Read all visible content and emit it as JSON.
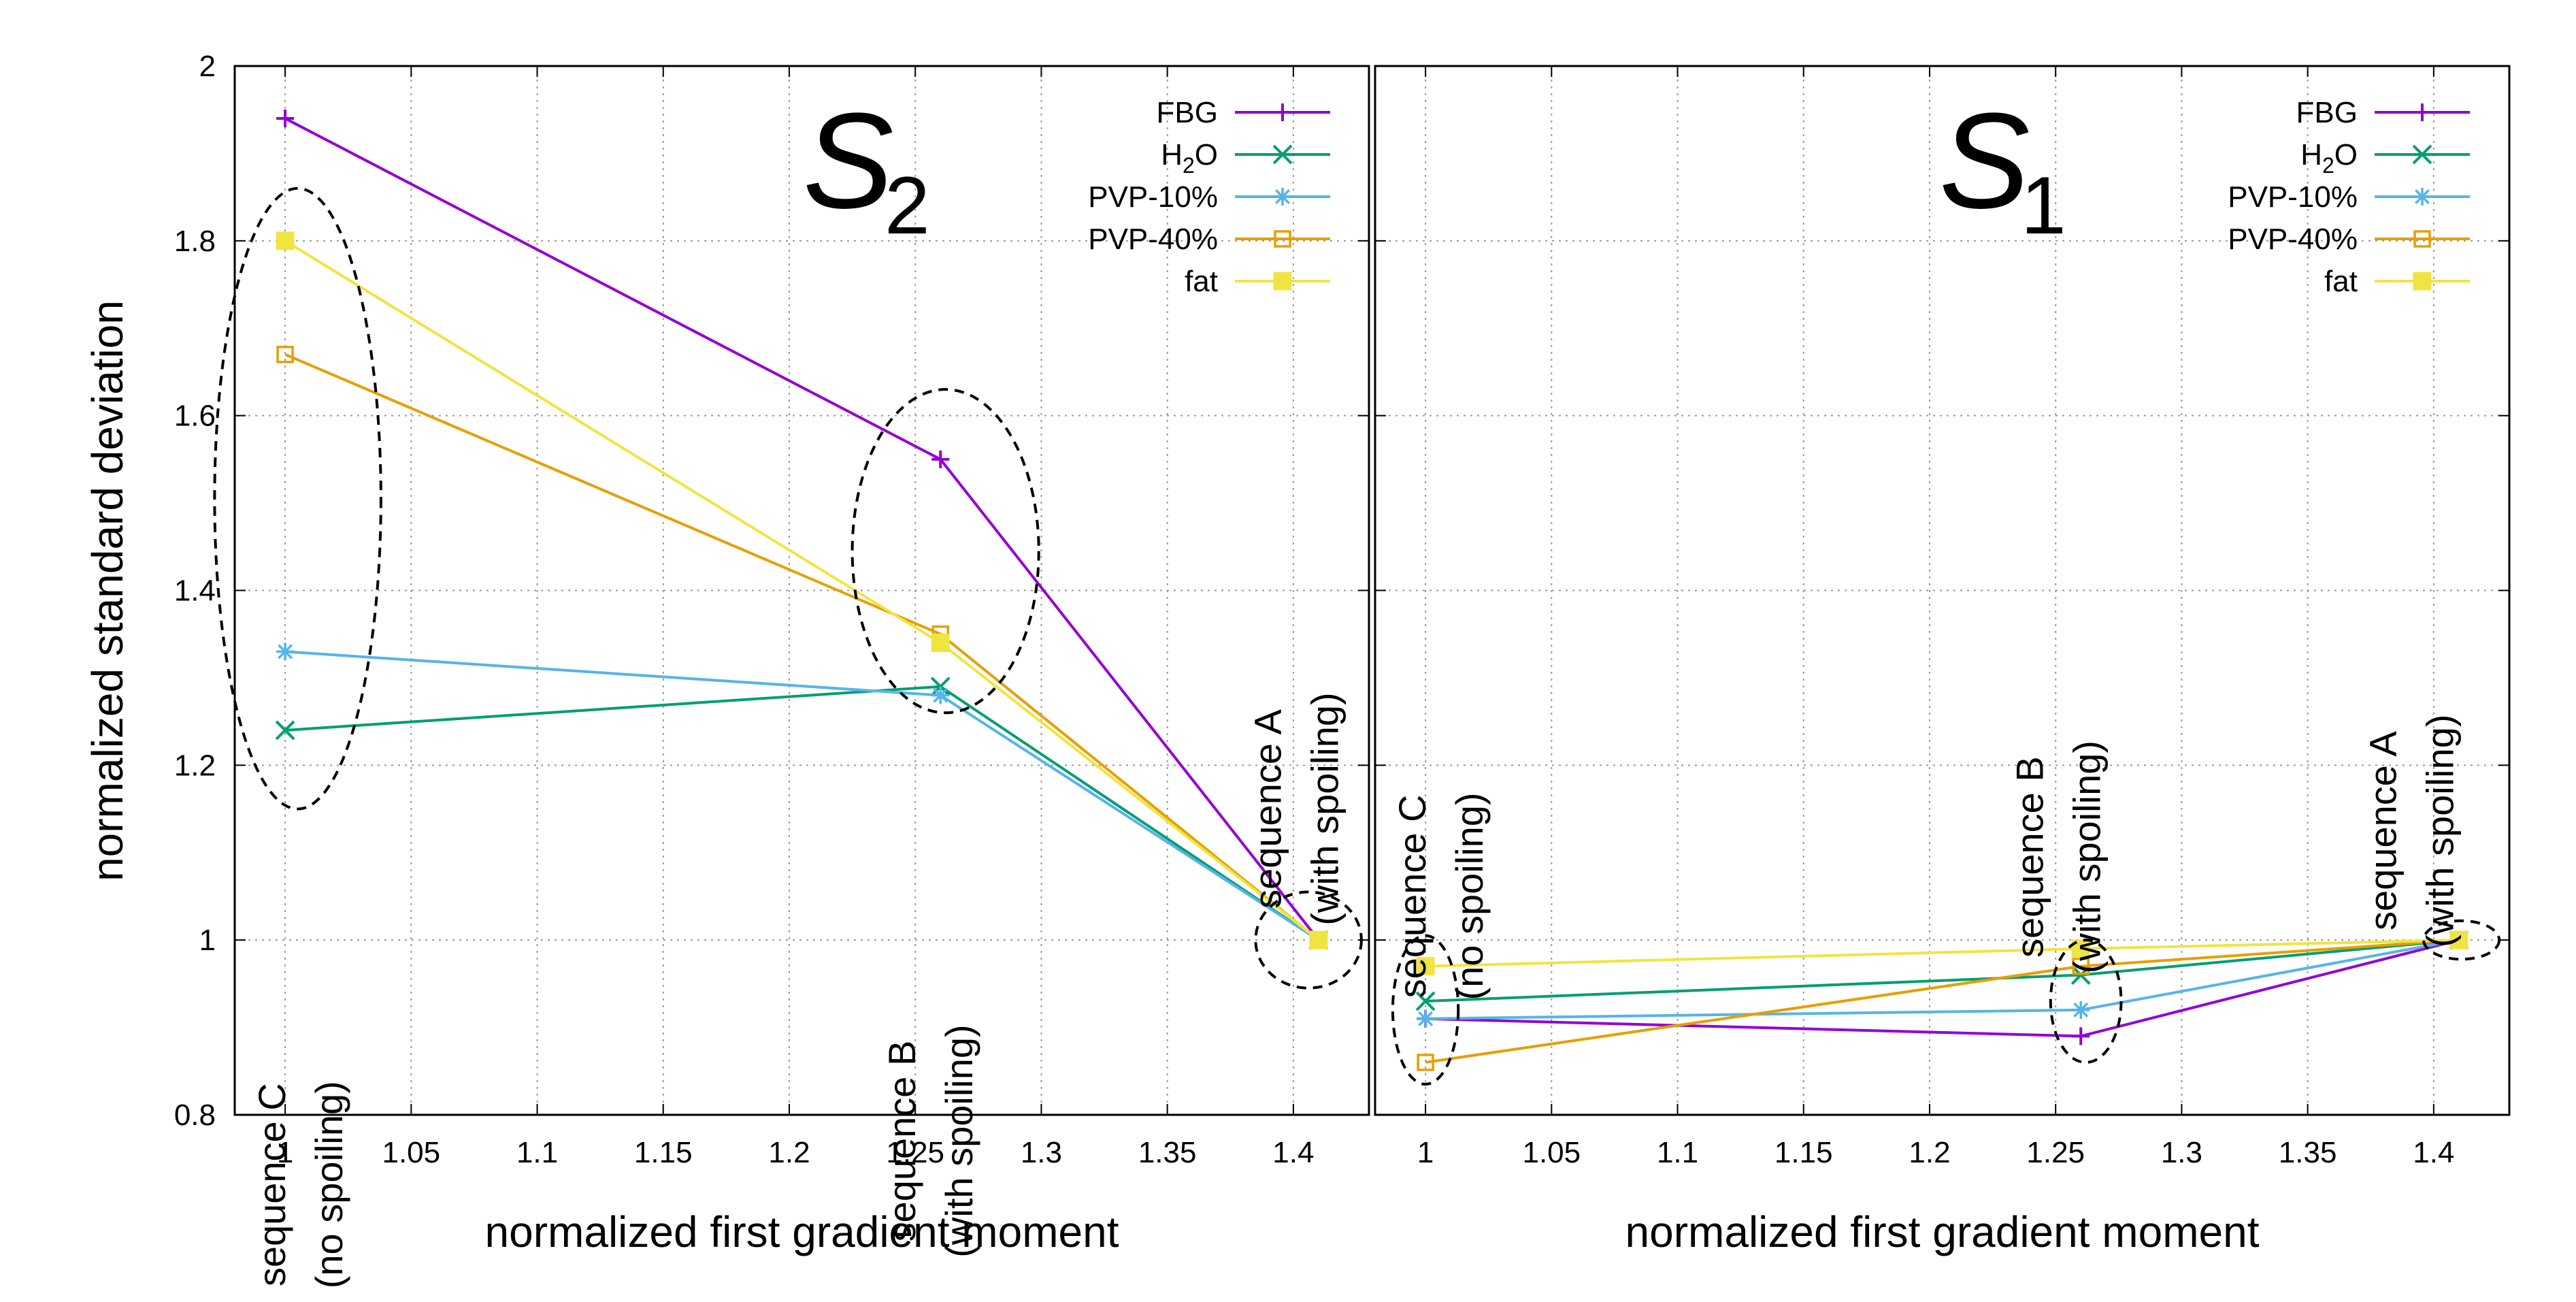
{
  "chart_data": [
    {
      "type": "line",
      "panel_label": "S",
      "panel_sub": "2",
      "xlabel": "normalized first gradient moment",
      "ylabel": "normalized standard deviation",
      "xlim": [
        0.98,
        1.43
      ],
      "ylim": [
        0.8,
        2.0
      ],
      "xticks": [
        "1",
        "1.05",
        "1.1",
        "1.15",
        "1.2",
        "1.25",
        "1.3",
        "1.35",
        "1.4"
      ],
      "yticks": [
        "0.8",
        "1",
        "1.2",
        "1.4",
        "1.6",
        "1.8",
        "2"
      ],
      "grid": true,
      "legend_position": "top-right",
      "series": [
        {
          "name": "FBG",
          "label_main": "FBG",
          "label_sub": "",
          "label_tail": "",
          "color": "#9400D3",
          "marker": "plus",
          "x": [
            1,
            1.26,
            1.41
          ],
          "y": [
            1.94,
            1.55,
            1.0
          ]
        },
        {
          "name": "H2O",
          "label_main": "H",
          "label_sub": "2",
          "label_tail": "O",
          "color": "#009E73",
          "marker": "cross",
          "x": [
            1,
            1.26,
            1.41
          ],
          "y": [
            1.24,
            1.29,
            1.0
          ]
        },
        {
          "name": "PVP-10%",
          "label_main": "PVP-10%",
          "label_sub": "",
          "label_tail": "",
          "color": "#56B4E9",
          "marker": "star",
          "x": [
            1,
            1.26,
            1.41
          ],
          "y": [
            1.33,
            1.28,
            1.0
          ]
        },
        {
          "name": "PVP-40%",
          "label_main": "PVP-40%",
          "label_sub": "",
          "label_tail": "",
          "color": "#E69F00",
          "marker": "square-open",
          "x": [
            1,
            1.26,
            1.41
          ],
          "y": [
            1.67,
            1.35,
            1.0
          ]
        },
        {
          "name": "fat",
          "label_main": "fat",
          "label_sub": "",
          "label_tail": "",
          "color": "#F0E442",
          "marker": "square-filled",
          "x": [
            1,
            1.26,
            1.41
          ],
          "y": [
            1.8,
            1.34,
            1.0
          ]
        }
      ],
      "annotations": [
        {
          "line1": "sequence C",
          "line2": "(no spoiling)"
        },
        {
          "line1": "sequence B",
          "line2": "(with spoiling)"
        },
        {
          "line1": "sequence A",
          "line2": "(with spoiling)"
        }
      ]
    },
    {
      "type": "line",
      "panel_label": "S",
      "panel_sub": "1",
      "xlabel": "normalized first gradient moment",
      "ylabel": "",
      "xlim": [
        0.98,
        1.43
      ],
      "ylim": [
        0.8,
        2.0
      ],
      "xticks": [
        "1",
        "1.05",
        "1.1",
        "1.15",
        "1.2",
        "1.25",
        "1.3",
        "1.35",
        "1.4"
      ],
      "yticks": [],
      "grid": true,
      "legend_position": "top-right",
      "series": [
        {
          "name": "FBG",
          "label_main": "FBG",
          "label_sub": "",
          "label_tail": "",
          "color": "#9400D3",
          "marker": "plus",
          "x": [
            1,
            1.26,
            1.41
          ],
          "y": [
            0.91,
            0.89,
            1.0
          ]
        },
        {
          "name": "H2O",
          "label_main": "H",
          "label_sub": "2",
          "label_tail": "O",
          "color": "#009E73",
          "marker": "cross",
          "x": [
            1,
            1.26,
            1.41
          ],
          "y": [
            0.93,
            0.96,
            1.0
          ]
        },
        {
          "name": "PVP-10%",
          "label_main": "PVP-10%",
          "label_sub": "",
          "label_tail": "",
          "color": "#56B4E9",
          "marker": "star",
          "x": [
            1,
            1.26,
            1.41
          ],
          "y": [
            0.91,
            0.92,
            1.0
          ]
        },
        {
          "name": "PVP-40%",
          "label_main": "PVP-40%",
          "label_sub": "",
          "label_tail": "",
          "color": "#E69F00",
          "marker": "square-open",
          "x": [
            1,
            1.26,
            1.41
          ],
          "y": [
            0.86,
            0.97,
            1.0
          ]
        },
        {
          "name": "fat",
          "label_main": "fat",
          "label_sub": "",
          "label_tail": "",
          "color": "#F0E442",
          "marker": "square-filled",
          "x": [
            1,
            1.26,
            1.41
          ],
          "y": [
            0.97,
            0.99,
            1.0
          ]
        }
      ],
      "annotations": [
        {
          "line1": "sequence C",
          "line2": "(no spoiling)"
        },
        {
          "line1": "sequence B",
          "line2": "(with spoiling)"
        },
        {
          "line1": "sequence A",
          "line2": "(with spoiling)"
        }
      ]
    }
  ]
}
